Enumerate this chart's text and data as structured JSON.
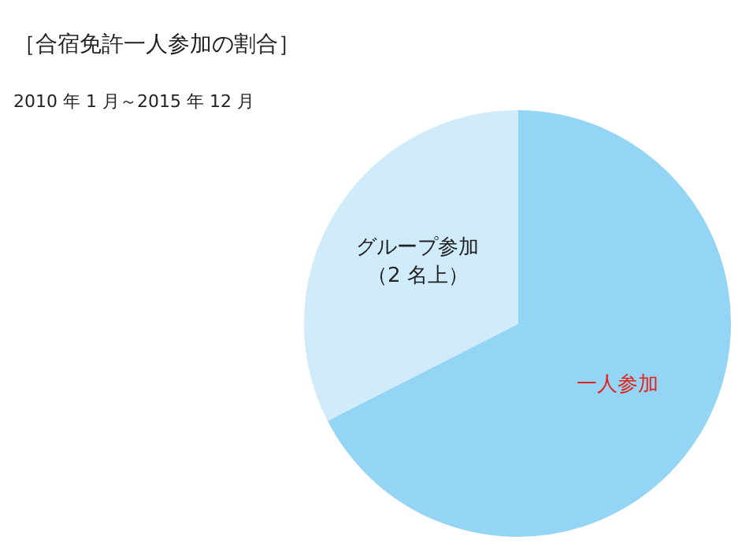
{
  "chart_data": {
    "type": "pie",
    "title": "［合宿免許一人参加の割合］",
    "annotations": [
      "2010 年 1 月～2015 年 12 月"
    ],
    "categories": [
      "一人参加",
      "グループ参加（2 名上）"
    ],
    "values": [
      67.5,
      32.5
    ],
    "colors": [
      "#94d4f5",
      "#d0ebfa"
    ]
  }
}
